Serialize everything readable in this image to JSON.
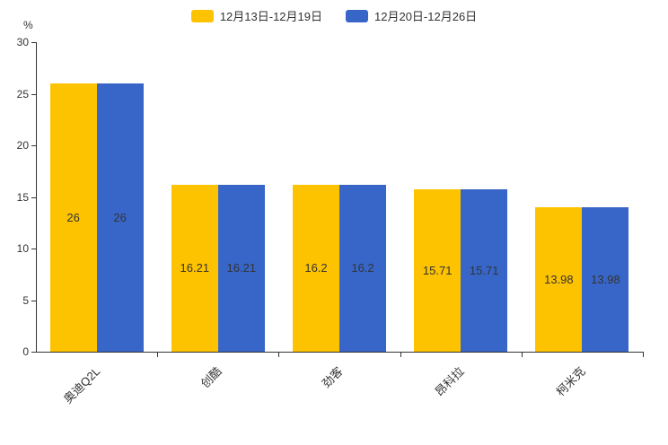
{
  "chart_data": {
    "type": "bar",
    "title": "",
    "unit_label": "%",
    "categories": [
      "奥迪Q2L",
      "创酷",
      "劲客",
      "昂科拉",
      "柯米克"
    ],
    "series": [
      {
        "name": "12月13日-12月19日",
        "color": "#FDC300",
        "values": [
          26,
          16.21,
          16.2,
          15.71,
          13.98
        ]
      },
      {
        "name": "12月20日-12月26日",
        "color": "#3866C8",
        "values": [
          26,
          16.21,
          16.2,
          15.71,
          13.98
        ]
      }
    ],
    "value_labels": [
      [
        "26",
        "16.21",
        "16.2",
        "15.71",
        "13.98"
      ],
      [
        "26",
        "16.21",
        "16.2",
        "15.71",
        "13.98"
      ]
    ],
    "ylim": [
      0,
      30
    ],
    "yticks": [
      0,
      5,
      10,
      15,
      20,
      25,
      30
    ],
    "grid": false,
    "legend_position": "top",
    "axis_color": "#333333",
    "label_color": "#333333"
  }
}
